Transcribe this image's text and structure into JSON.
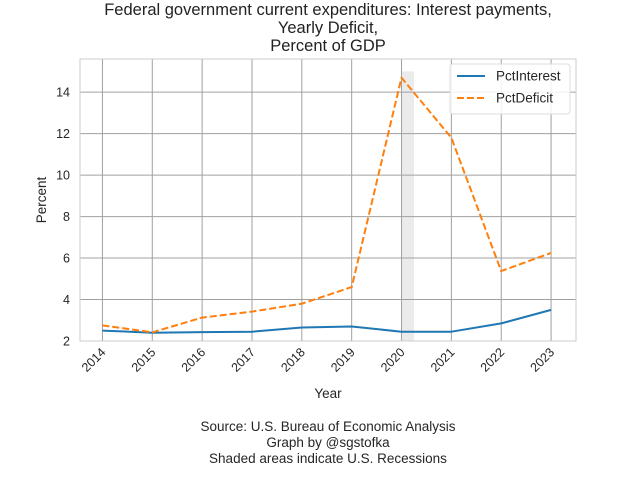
{
  "chart_data": {
    "type": "line",
    "title": [
      "Federal government current expenditures: Interest payments,",
      "Yearly Deficit,",
      "Percent of GDP"
    ],
    "xlabel": "Year",
    "ylabel": "Percent",
    "x": [
      2014,
      2015,
      2016,
      2017,
      2018,
      2019,
      2020,
      2021,
      2022,
      2023
    ],
    "xtick_labels": [
      "2014",
      "2015",
      "2016",
      "2017",
      "2018",
      "2019",
      "2020",
      "2021",
      "2022",
      "2023"
    ],
    "yticks": [
      2,
      4,
      6,
      8,
      10,
      12,
      14
    ],
    "ytick_labels": [
      "2",
      "4",
      "6",
      "8",
      "10",
      "12",
      "14"
    ],
    "xlim": [
      2013.55,
      2023.5
    ],
    "ylim": [
      2,
      15.6
    ],
    "grid": true,
    "legend": {
      "position": "top-right"
    },
    "series": [
      {
        "name": "PctInterest",
        "color": "#1f77b4",
        "style": "solid",
        "values": [
          2.5,
          2.4,
          2.43,
          2.45,
          2.65,
          2.7,
          2.45,
          2.45,
          2.85,
          3.5
        ]
      },
      {
        "name": "PctDeficit",
        "color": "#ff7f0e",
        "style": "dashed",
        "values": [
          2.75,
          2.42,
          3.13,
          3.42,
          3.8,
          4.6,
          14.7,
          11.8,
          5.37,
          6.25
        ]
      }
    ],
    "recessions": [
      {
        "start": 2020.0,
        "end": 2020.25
      }
    ],
    "footer": [
      "Source: U.S. Bureau of Economic Analysis",
      "Graph by @sgstofka",
      "Shaded areas indicate U.S. Recessions"
    ]
  }
}
